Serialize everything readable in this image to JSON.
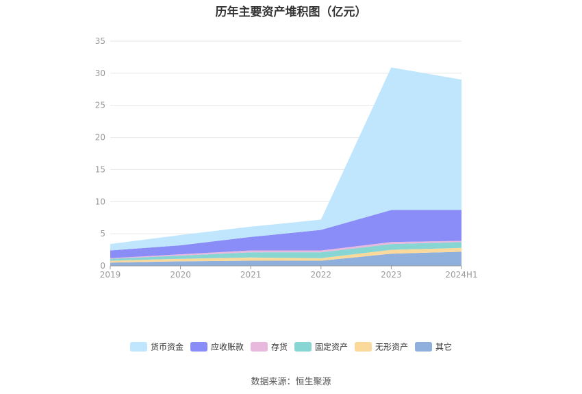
{
  "chart_data": {
    "type": "area",
    "stacked": true,
    "title": "历年主要资产堆积图（亿元）",
    "categories": [
      "2019",
      "2020",
      "2021",
      "2022",
      "2023",
      "2024H1"
    ],
    "ylim": [
      0,
      35
    ],
    "yticks": [
      0,
      5,
      10,
      15,
      20,
      25,
      30,
      35
    ],
    "grid": true,
    "legend_position": "bottom",
    "series": [
      {
        "name": "其它",
        "color": "#8fb0dc",
        "values": [
          0.5,
          0.7,
          0.8,
          0.8,
          1.9,
          2.2
        ]
      },
      {
        "name": "无形资产",
        "color": "#fbd99a",
        "values": [
          0.3,
          0.4,
          0.5,
          0.4,
          0.6,
          0.6
        ]
      },
      {
        "name": "固定资产",
        "color": "#88d6d4",
        "values": [
          0.3,
          0.5,
          0.8,
          0.9,
          0.9,
          0.9
        ]
      },
      {
        "name": "存货",
        "color": "#e8b9dc",
        "values": [
          0.1,
          0.2,
          0.3,
          0.3,
          0.3,
          0.2
        ]
      },
      {
        "name": "应收账款",
        "color": "#8a8cf7",
        "values": [
          1.2,
          1.4,
          2.1,
          3.2,
          5.0,
          4.8
        ]
      },
      {
        "name": "货币资金",
        "color": "#bfe6fc",
        "values": [
          1.0,
          1.6,
          1.6,
          1.6,
          22.2,
          20.3
        ]
      }
    ],
    "legend_order": [
      "货币资金",
      "应收账款",
      "存货",
      "固定资产",
      "无形资产",
      "其它"
    ]
  },
  "source_note": "数据来源：恒生聚源"
}
